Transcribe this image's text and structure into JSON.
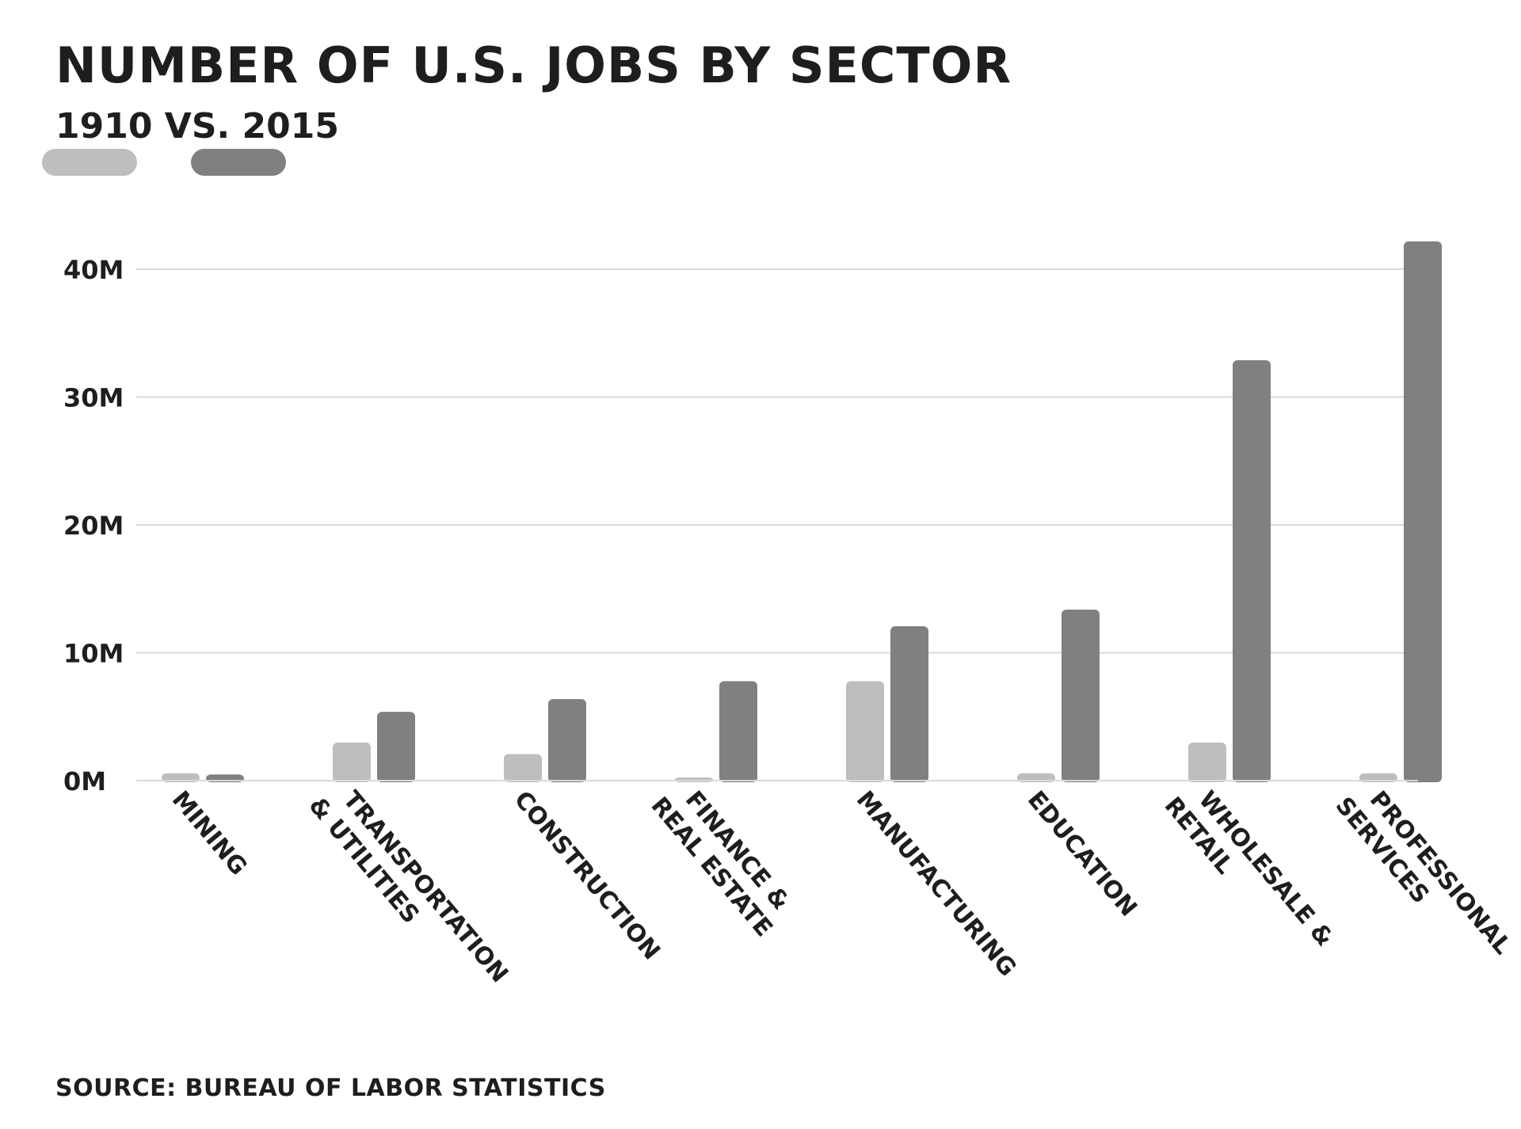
{
  "chart_data": {
    "type": "bar",
    "title": "NUMBER OF U.S. JOBS BY SECTOR",
    "subtitle": "1910 VS. 2015",
    "categories": [
      [
        "MINING"
      ],
      [
        "TRANSPORTATION",
        "& UTILITIES"
      ],
      [
        "CONSTRUCTION"
      ],
      [
        "FINANCE &",
        "REAL ESTATE"
      ],
      [
        "MANUFACTURING"
      ],
      [
        "EDUCATION"
      ],
      [
        "WHOLESALE &",
        "RETAIL"
      ],
      [
        "PROFESSIONAL",
        "SERVICES"
      ]
    ],
    "series": [
      {
        "color": "#bfbebe",
        "values": [
          0.7,
          3.1,
          2.2,
          0.3,
          7.9,
          0.7,
          3.1,
          0.7
        ]
      },
      {
        "color": "#808080",
        "values": [
          0.6,
          5.5,
          6.5,
          7.9,
          12.2,
          13.5,
          33.0,
          42.3
        ]
      }
    ],
    "y_ticks": [
      0,
      10,
      20,
      30,
      40
    ],
    "y_tick_labels": [
      "0M",
      "10M",
      "20M",
      "30M",
      "40M"
    ],
    "ylim": [
      0,
      43
    ],
    "grid": true,
    "legend": "top-left",
    "xlabel": "",
    "ylabel": "",
    "source": "SOURCE: BUREAU OF LABOR STATISTICS"
  }
}
